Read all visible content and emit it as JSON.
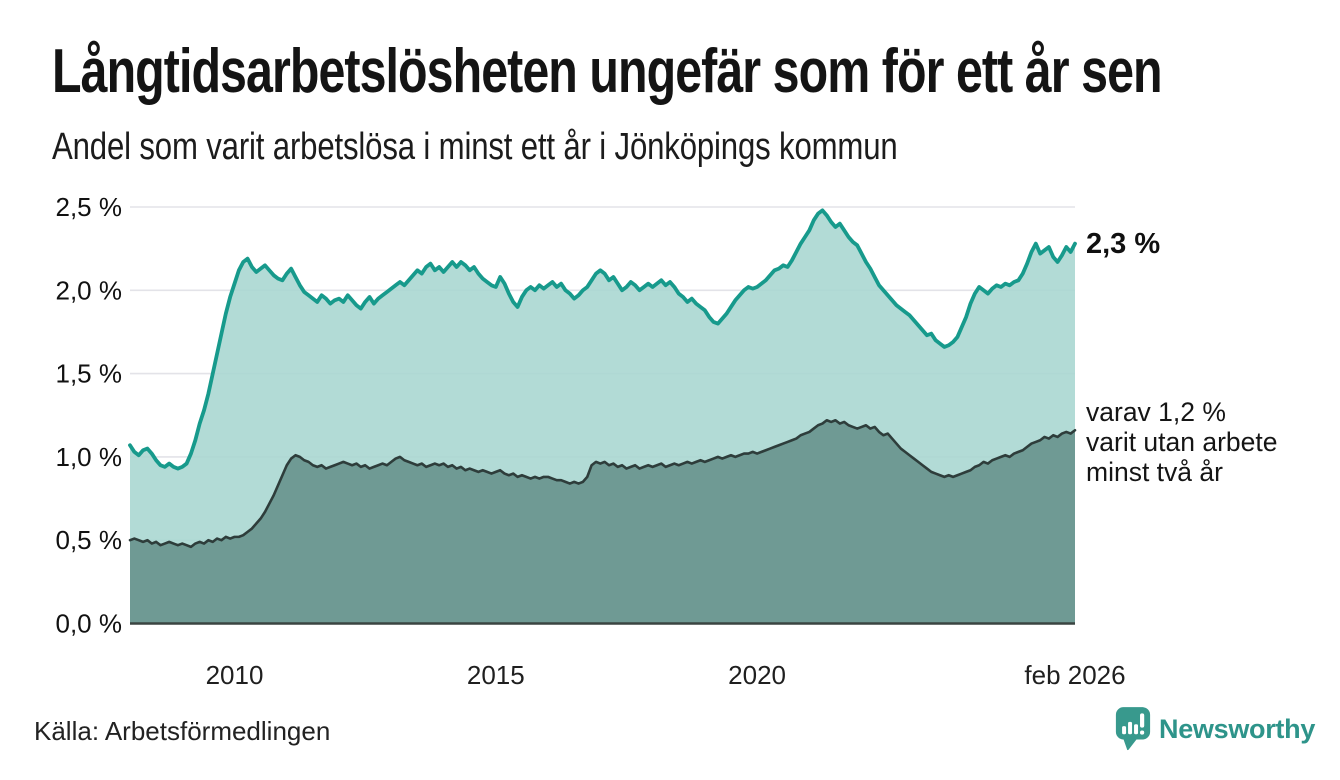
{
  "header": {
    "title": "Långtidsarbetslösheten ungefär som för ett år sen",
    "subtitle": "Andel som varit arbetslösa i minst ett år i Jönköpings kommun"
  },
  "annotations": {
    "total_end_label": "2,3 %",
    "secondary_label_lines": [
      "varav 1,2 %",
      "varit utan arbete",
      "minst två år"
    ]
  },
  "footer": {
    "source": "Källa: Arbetsförmedlingen",
    "brand": "Newsworthy"
  },
  "colors": {
    "brand_teal": "#2e948a",
    "line_primary": "#179a8c",
    "fill_primary": "#a7d6d0",
    "line_secondary": "#2e3d3b",
    "fill_secondary": "#6f9a94",
    "gridline": "#e3e3e8",
    "axis_baseline": "#3a4441",
    "text": "#161616"
  },
  "chart_data": {
    "type": "area",
    "title": "Långtidsarbetslösheten ungefär som för ett år sen",
    "subtitle": "Andel som varit arbetslösa i minst ett år i Jönköpings kommun",
    "unit": "%",
    "frequency": "monthly",
    "start": "2008-01",
    "end": "2026-02",
    "ylim": [
      0,
      2.5
    ],
    "grid": true,
    "legend_position": "inline-end-labels",
    "y_ticks": [
      {
        "value": 0.0,
        "label": "0,0 %"
      },
      {
        "value": 0.5,
        "label": "0,5 %"
      },
      {
        "value": 1.0,
        "label": "1,0 %"
      },
      {
        "value": 1.5,
        "label": "1,5 %"
      },
      {
        "value": 2.0,
        "label": "2,0 %"
      },
      {
        "value": 2.5,
        "label": "2,5 %"
      }
    ],
    "x_ticks": [
      {
        "label": "2010",
        "month_index": 24
      },
      {
        "label": "2015",
        "month_index": 84
      },
      {
        "label": "2020",
        "month_index": 144
      },
      {
        "label": "feb 2026",
        "month_index": 217
      }
    ],
    "series": [
      {
        "name": "Arbetslösa minst ett år",
        "end_value_label": "2,3 %",
        "line_color": "#179a8c",
        "fill_color": "#a7d6d0",
        "line_width": 3.8,
        "fill_opacity": 0.88,
        "values": [
          1.07,
          1.03,
          1.01,
          1.04,
          1.05,
          1.02,
          0.98,
          0.95,
          0.94,
          0.96,
          0.94,
          0.93,
          0.94,
          0.96,
          1.02,
          1.1,
          1.2,
          1.28,
          1.38,
          1.5,
          1.62,
          1.74,
          1.86,
          1.96,
          2.04,
          2.12,
          2.17,
          2.19,
          2.14,
          2.11,
          2.13,
          2.15,
          2.12,
          2.09,
          2.07,
          2.06,
          2.1,
          2.13,
          2.08,
          2.03,
          1.99,
          1.97,
          1.95,
          1.93,
          1.97,
          1.95,
          1.92,
          1.94,
          1.95,
          1.93,
          1.97,
          1.94,
          1.91,
          1.89,
          1.93,
          1.96,
          1.92,
          1.95,
          1.97,
          1.99,
          2.01,
          2.03,
          2.05,
          2.03,
          2.06,
          2.09,
          2.12,
          2.1,
          2.14,
          2.16,
          2.12,
          2.14,
          2.11,
          2.14,
          2.17,
          2.14,
          2.17,
          2.15,
          2.12,
          2.14,
          2.1,
          2.07,
          2.05,
          2.03,
          2.02,
          2.08,
          2.04,
          1.98,
          1.93,
          1.9,
          1.96,
          2.0,
          2.02,
          2.0,
          2.03,
          2.01,
          2.03,
          2.05,
          2.02,
          2.04,
          2.0,
          1.98,
          1.95,
          1.97,
          2.0,
          2.02,
          2.06,
          2.1,
          2.12,
          2.1,
          2.06,
          2.08,
          2.04,
          2.0,
          2.02,
          2.05,
          2.03,
          2.0,
          2.02,
          2.04,
          2.02,
          2.04,
          2.06,
          2.03,
          2.05,
          2.02,
          1.98,
          1.96,
          1.93,
          1.95,
          1.92,
          1.9,
          1.88,
          1.84,
          1.81,
          1.8,
          1.83,
          1.86,
          1.9,
          1.94,
          1.97,
          2.0,
          2.02,
          2.01,
          2.02,
          2.04,
          2.06,
          2.09,
          2.12,
          2.13,
          2.15,
          2.14,
          2.18,
          2.23,
          2.28,
          2.32,
          2.36,
          2.42,
          2.46,
          2.48,
          2.45,
          2.41,
          2.38,
          2.4,
          2.36,
          2.32,
          2.29,
          2.27,
          2.22,
          2.17,
          2.13,
          2.08,
          2.03,
          2.0,
          1.97,
          1.94,
          1.91,
          1.89,
          1.87,
          1.85,
          1.82,
          1.79,
          1.76,
          1.73,
          1.74,
          1.7,
          1.68,
          1.66,
          1.67,
          1.69,
          1.72,
          1.78,
          1.84,
          1.92,
          1.98,
          2.02,
          2.0,
          1.98,
          2.01,
          2.03,
          2.02,
          2.04,
          2.03,
          2.05,
          2.06,
          2.1,
          2.16,
          2.23,
          2.28,
          2.22,
          2.24,
          2.26,
          2.2,
          2.17,
          2.21,
          2.26,
          2.23,
          2.28
        ]
      },
      {
        "name": "Arbetslösa minst två år",
        "end_value_label": "1,2 %",
        "line_color": "#2e3d3b",
        "fill_color": "#6f9a94",
        "line_width": 2.6,
        "fill_opacity": 1,
        "values": [
          0.5,
          0.51,
          0.5,
          0.49,
          0.5,
          0.48,
          0.49,
          0.47,
          0.48,
          0.49,
          0.48,
          0.47,
          0.48,
          0.47,
          0.46,
          0.48,
          0.49,
          0.48,
          0.5,
          0.49,
          0.51,
          0.5,
          0.52,
          0.51,
          0.52,
          0.52,
          0.53,
          0.55,
          0.57,
          0.6,
          0.63,
          0.67,
          0.72,
          0.77,
          0.83,
          0.89,
          0.95,
          0.99,
          1.01,
          1.0,
          0.98,
          0.97,
          0.95,
          0.94,
          0.95,
          0.93,
          0.94,
          0.95,
          0.96,
          0.97,
          0.96,
          0.95,
          0.96,
          0.94,
          0.95,
          0.93,
          0.94,
          0.95,
          0.96,
          0.95,
          0.97,
          0.99,
          1.0,
          0.98,
          0.97,
          0.96,
          0.95,
          0.96,
          0.94,
          0.95,
          0.96,
          0.95,
          0.96,
          0.94,
          0.95,
          0.93,
          0.94,
          0.92,
          0.93,
          0.92,
          0.91,
          0.92,
          0.91,
          0.9,
          0.91,
          0.92,
          0.9,
          0.89,
          0.9,
          0.88,
          0.89,
          0.88,
          0.87,
          0.88,
          0.87,
          0.88,
          0.88,
          0.87,
          0.86,
          0.86,
          0.85,
          0.84,
          0.85,
          0.84,
          0.85,
          0.88,
          0.95,
          0.97,
          0.96,
          0.97,
          0.95,
          0.96,
          0.94,
          0.95,
          0.93,
          0.94,
          0.95,
          0.93,
          0.94,
          0.95,
          0.94,
          0.95,
          0.96,
          0.94,
          0.95,
          0.96,
          0.95,
          0.96,
          0.97,
          0.96,
          0.97,
          0.98,
          0.97,
          0.98,
          0.99,
          1.0,
          0.99,
          1.0,
          1.01,
          1.0,
          1.01,
          1.02,
          1.02,
          1.03,
          1.02,
          1.03,
          1.04,
          1.05,
          1.06,
          1.07,
          1.08,
          1.09,
          1.1,
          1.11,
          1.13,
          1.14,
          1.15,
          1.17,
          1.19,
          1.2,
          1.22,
          1.21,
          1.22,
          1.2,
          1.21,
          1.19,
          1.18,
          1.17,
          1.18,
          1.19,
          1.17,
          1.18,
          1.15,
          1.13,
          1.14,
          1.11,
          1.08,
          1.05,
          1.03,
          1.01,
          0.99,
          0.97,
          0.95,
          0.93,
          0.91,
          0.9,
          0.89,
          0.88,
          0.89,
          0.88,
          0.89,
          0.9,
          0.91,
          0.92,
          0.94,
          0.95,
          0.97,
          0.96,
          0.98,
          0.99,
          1.0,
          1.01,
          1.0,
          1.02,
          1.03,
          1.04,
          1.06,
          1.08,
          1.09,
          1.1,
          1.12,
          1.11,
          1.13,
          1.12,
          1.14,
          1.15,
          1.14,
          1.16
        ]
      }
    ]
  }
}
